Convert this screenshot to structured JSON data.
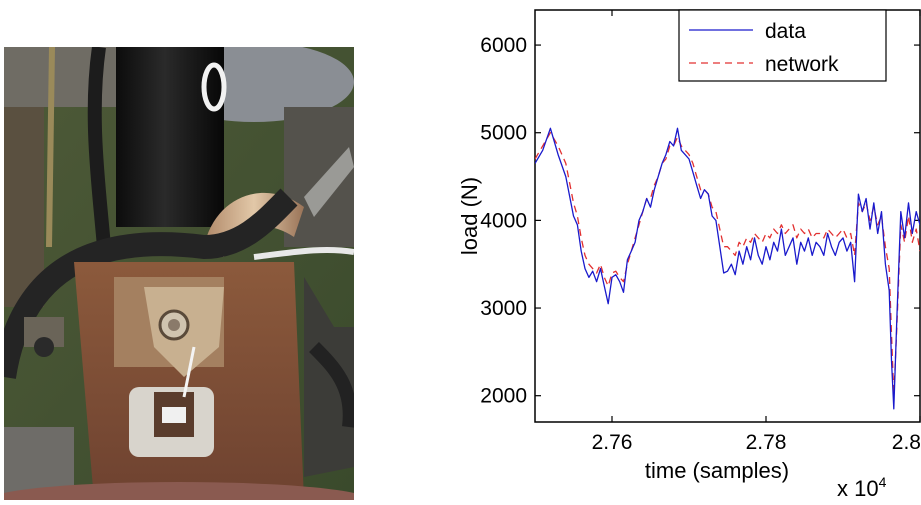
{
  "photo": {
    "description_icon": "vehicle-suspension-strut-with-load-sensor"
  },
  "chart_data": {
    "type": "line",
    "title": "",
    "xlabel": "time (samples)",
    "ylabel": "load (N)",
    "x_exponent_label": "x 10",
    "x_exponent_power": "4",
    "xlim": [
      2.75,
      2.8
    ],
    "ylim": [
      1700,
      6400
    ],
    "x_ticks": [
      2.76,
      2.78,
      2.8
    ],
    "x_tick_labels": [
      "2.76",
      "2.78",
      "2.8"
    ],
    "y_ticks": [
      2000,
      3000,
      4000,
      5000,
      6000
    ],
    "y_tick_labels": [
      "2000",
      "3000",
      "4000",
      "5000",
      "6000"
    ],
    "legend_position": "top-right",
    "grid": false,
    "series": [
      {
        "name": "data",
        "color": "#1a1acc",
        "style": "solid",
        "x": [
          2.75,
          2.751,
          2.752,
          2.753,
          2.754,
          2.755,
          2.7555,
          2.756,
          2.7565,
          2.757,
          2.7575,
          2.758,
          2.7585,
          2.759,
          2.7595,
          2.76,
          2.7605,
          2.761,
          2.7615,
          2.762,
          2.7625,
          2.763,
          2.7635,
          2.764,
          2.7645,
          2.765,
          2.7655,
          2.766,
          2.7665,
          2.767,
          2.7675,
          2.768,
          2.7685,
          2.769,
          2.7695,
          2.77,
          2.7705,
          2.771,
          2.7715,
          2.772,
          2.7725,
          2.773,
          2.7735,
          2.774,
          2.7745,
          2.775,
          2.7755,
          2.776,
          2.7765,
          2.777,
          2.7775,
          2.778,
          2.7785,
          2.779,
          2.7795,
          2.78,
          2.7805,
          2.781,
          2.7815,
          2.782,
          2.7825,
          2.783,
          2.7835,
          2.784,
          2.7845,
          2.785,
          2.7855,
          2.786,
          2.7865,
          2.787,
          2.7875,
          2.788,
          2.7885,
          2.789,
          2.7895,
          2.79,
          2.7905,
          2.791,
          2.7915,
          2.792,
          2.7925,
          2.793,
          2.7935,
          2.794,
          2.7945,
          2.795,
          2.7955,
          2.796,
          2.7963,
          2.7966,
          2.797,
          2.7975,
          2.798,
          2.7985,
          2.799,
          2.7995,
          2.8
        ],
        "y": [
          4650,
          4800,
          5050,
          4750,
          4500,
          4050,
          3950,
          3650,
          3450,
          3350,
          3420,
          3300,
          3450,
          3250,
          3050,
          3350,
          3380,
          3300,
          3180,
          3550,
          3650,
          3750,
          4000,
          4100,
          4250,
          4150,
          4350,
          4500,
          4650,
          4750,
          4900,
          4850,
          5050,
          4800,
          4750,
          4700,
          4550,
          4400,
          4250,
          4350,
          4300,
          4050,
          4000,
          3700,
          3400,
          3420,
          3500,
          3380,
          3650,
          3500,
          3700,
          3550,
          3800,
          3600,
          3500,
          3700,
          3550,
          3750,
          3650,
          3900,
          3600,
          3700,
          3800,
          3500,
          3750,
          3650,
          3800,
          3600,
          3750,
          3700,
          3600,
          3850,
          3700,
          3600,
          3750,
          3800,
          3650,
          3750,
          3300,
          4300,
          4100,
          4250,
          3900,
          4200,
          3850,
          4100,
          3500,
          3200,
          2400,
          1850,
          2900,
          4100,
          3800,
          4200,
          3850,
          4100,
          3950
        ]
      },
      {
        "name": "network",
        "color": "#e23030",
        "style": "dashed",
        "x": [
          2.75,
          2.751,
          2.752,
          2.753,
          2.754,
          2.755,
          2.7555,
          2.756,
          2.7565,
          2.757,
          2.7575,
          2.758,
          2.7585,
          2.759,
          2.7595,
          2.76,
          2.7605,
          2.761,
          2.7615,
          2.762,
          2.7625,
          2.763,
          2.7635,
          2.764,
          2.7645,
          2.765,
          2.7655,
          2.766,
          2.7665,
          2.767,
          2.7675,
          2.768,
          2.7685,
          2.769,
          2.7695,
          2.77,
          2.7705,
          2.771,
          2.7715,
          2.772,
          2.7725,
          2.773,
          2.7735,
          2.774,
          2.7745,
          2.775,
          2.7755,
          2.776,
          2.7765,
          2.777,
          2.7775,
          2.778,
          2.7785,
          2.779,
          2.7795,
          2.78,
          2.7805,
          2.781,
          2.7815,
          2.782,
          2.7825,
          2.783,
          2.7835,
          2.784,
          2.7845,
          2.785,
          2.7855,
          2.786,
          2.7865,
          2.787,
          2.7875,
          2.788,
          2.7885,
          2.789,
          2.7895,
          2.79,
          2.7905,
          2.791,
          2.7915,
          2.792,
          2.7925,
          2.793,
          2.7935,
          2.794,
          2.7945,
          2.795,
          2.7955,
          2.796,
          2.7963,
          2.7966,
          2.797,
          2.7975,
          2.798,
          2.7985,
          2.799,
          2.7995,
          2.8
        ],
        "y": [
          4700,
          4850,
          5000,
          4850,
          4650,
          4200,
          4050,
          3800,
          3600,
          3500,
          3450,
          3400,
          3500,
          3350,
          3250,
          3400,
          3420,
          3350,
          3300,
          3500,
          3650,
          3800,
          3950,
          4100,
          4250,
          4250,
          4400,
          4500,
          4650,
          4700,
          4850,
          4850,
          4950,
          4850,
          4800,
          4750,
          4650,
          4500,
          4350,
          4350,
          4300,
          4150,
          4100,
          3900,
          3700,
          3700,
          3650,
          3600,
          3750,
          3700,
          3800,
          3750,
          3850,
          3800,
          3750,
          3850,
          3800,
          3900,
          3850,
          3950,
          3850,
          3900,
          3950,
          3800,
          3900,
          3850,
          3900,
          3800,
          3850,
          3850,
          3800,
          3900,
          3850,
          3800,
          3850,
          3900,
          3800,
          3850,
          3600,
          4200,
          4100,
          4200,
          4000,
          4150,
          3950,
          4050,
          3700,
          3450,
          2700,
          2000,
          2800,
          3950,
          3750,
          4050,
          3750,
          3900,
          3650
        ]
      }
    ]
  }
}
